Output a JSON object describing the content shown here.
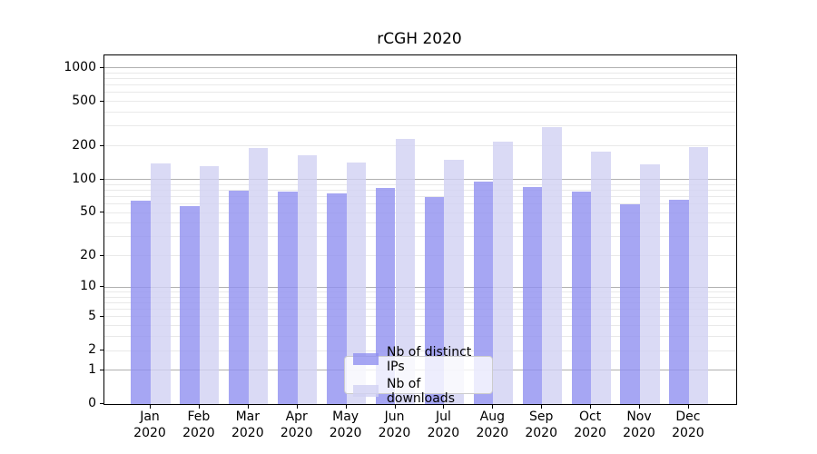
{
  "title": "rCGH 2020",
  "legend": {
    "items": [
      {
        "label": "Nb of distinct IPs",
        "color": "rgba(144,144,240,0.8)"
      },
      {
        "label": "Nb of downloads",
        "color": "rgba(209,209,243,0.8)"
      }
    ]
  },
  "axes": {
    "ytick_labels": [
      "0",
      "1",
      "2",
      "5",
      "10",
      "20",
      "50",
      "100",
      "200",
      "500",
      "1000"
    ],
    "xtick_year": "2020"
  },
  "chart_data": {
    "type": "bar",
    "title": "rCGH 2020",
    "categories": [
      "Jan 2020",
      "Feb 2020",
      "Mar 2020",
      "Apr 2020",
      "May 2020",
      "Jun 2020",
      "Jul 2020",
      "Aug 2020",
      "Sep 2020",
      "Oct 2020",
      "Nov 2020",
      "Dec 2020"
    ],
    "series": [
      {
        "name": "Nb of distinct IPs",
        "color": "rgba(144,144,240,0.8)",
        "values": [
          64,
          57,
          79,
          78,
          75,
          84,
          69,
          95,
          85,
          78,
          60,
          65
        ]
      },
      {
        "name": "Nb of downloads",
        "color": "rgba(209,209,243,0.8)",
        "values": [
          138,
          131,
          190,
          164,
          143,
          229,
          151,
          218,
          297,
          176,
          136,
          194
        ]
      }
    ],
    "xlabel": "",
    "ylabel": "",
    "yscale": "log(x+1)",
    "yticks": [
      0,
      1,
      2,
      5,
      10,
      20,
      50,
      100,
      200,
      500,
      1000
    ],
    "ytick_minor": [
      3,
      4,
      6,
      7,
      8,
      9,
      30,
      40,
      60,
      70,
      80,
      90,
      300,
      400,
      600,
      700,
      800,
      900
    ],
    "ytick_major_grid": [
      1,
      10,
      100,
      1000
    ],
    "ylim": [
      0,
      1288
    ],
    "grid": true,
    "legend_position": "lower center"
  }
}
